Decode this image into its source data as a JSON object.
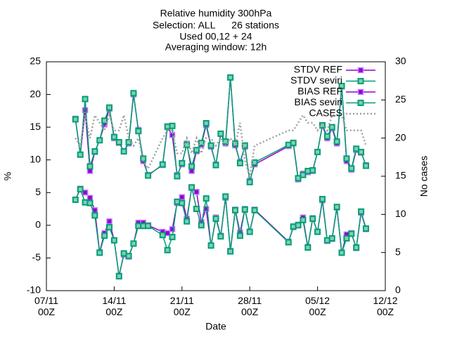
{
  "chart_data": {
    "type": "line",
    "title": [
      "Relative humidity 300hPa",
      "Selection: ALL      26 stations",
      "Used 00,12 + 24",
      "Averaging window: 12h"
    ],
    "x_label": "Date",
    "y_label": "%",
    "y2_label": "No cases",
    "x": [
      "10/11 00Z",
      "10/11 12Z",
      "11/11 00Z",
      "11/11 12Z",
      "12/11 00Z",
      "12/11 12Z",
      "13/11 00Z",
      "13/11 12Z",
      "14/11 00Z",
      "14/11 12Z",
      "15/11 00Z",
      "15/11 12Z",
      "16/11 00Z",
      "16/11 12Z",
      "17/11 00Z",
      "17/11 12Z",
      "19/11 00Z",
      "19/11 12Z",
      "20/11 00Z",
      "20/11 12Z",
      "21/11 00Z",
      "21/11 12Z",
      "22/11 00Z",
      "22/11 12Z",
      "23/11 00Z",
      "23/11 12Z",
      "24/11 00Z",
      "24/11 12Z",
      "25/11 00Z",
      "25/11 12Z",
      "26/11 00Z",
      "26/11 12Z",
      "27/11 00Z",
      "27/11 12Z",
      "28/11 00Z",
      "28/11 12Z",
      "02/12 00Z",
      "02/12 12Z",
      "03/12 00Z",
      "03/12 12Z",
      "04/12 00Z",
      "04/12 12Z",
      "05/12 00Z",
      "05/12 12Z",
      "06/12 00Z",
      "06/12 12Z",
      "07/12 00Z",
      "07/12 12Z",
      "08/12 00Z",
      "08/12 12Z",
      "09/12 00Z",
      "09/12 12Z",
      "10/12 00Z"
    ],
    "xlim": [
      "07/11 00Z",
      "12/12 00Z"
    ],
    "xticks": [
      {
        "value": "07/11 00Z",
        "label": "07/11\n00Z"
      },
      {
        "value": "14/11 00Z",
        "label": "14/11\n00Z"
      },
      {
        "value": "21/11 00Z",
        "label": "21/11\n00Z"
      },
      {
        "value": "28/11 00Z",
        "label": "28/11\n00Z"
      },
      {
        "value": "05/12 00Z",
        "label": "05/12\n00Z"
      },
      {
        "value": "12/12 00Z",
        "label": "12/12\n00Z"
      }
    ],
    "ylim": [
      -10,
      25
    ],
    "yticks": [
      -10,
      -5,
      0,
      5,
      10,
      15,
      20,
      25
    ],
    "y2lim": [
      0,
      30
    ],
    "y2ticks": [
      0,
      5,
      10,
      15,
      20,
      25,
      30
    ],
    "legend": "top right",
    "series": [
      {
        "name": "STDV REF",
        "color": "#9400d3",
        "marker": "filled-square",
        "line_style": "solid",
        "values": [
          16.3,
          10.8,
          17.6,
          8.3,
          11.2,
          13.0,
          15.4,
          17.8,
          13.3,
          12.6,
          11.3,
          12.5,
          20.0,
          14.6,
          9.8,
          7.7,
          9.2,
          15.0,
          13.8,
          7.7,
          9.3,
          12.5,
          8.3,
          11.3,
          12.3,
          15.3,
          12.0,
          9.3,
          14.0,
          12.5,
          22.6,
          12.2,
          9.7,
          12.0,
          6.8,
          9.3,
          12.1,
          12.5,
          7.0,
          7.9,
          8.1,
          8.3,
          11.2,
          15.2,
          13.3,
          14.8,
          12.5,
          21.2,
          9.8,
          8.5,
          11.5,
          11.1,
          9.2
        ]
      },
      {
        "name": "STDV seviri",
        "color": "#009e73",
        "marker": "open-square",
        "line_style": "solid",
        "values": [
          16.2,
          10.8,
          19.3,
          9.0,
          11.3,
          13.0,
          16.0,
          18.0,
          13.5,
          12.7,
          11.3,
          12.7,
          20.2,
          14.4,
          10.2,
          7.6,
          9.3,
          15.1,
          15.2,
          7.5,
          9.5,
          12.3,
          9.0,
          11.5,
          12.6,
          15.6,
          12.2,
          9.2,
          14.0,
          12.8,
          22.6,
          12.5,
          9.5,
          12.2,
          6.6,
          9.6,
          12.3,
          12.6,
          7.2,
          7.7,
          8.3,
          8.4,
          11.2,
          15.3,
          13.6,
          15.0,
          12.8,
          21.3,
          10.2,
          8.7,
          11.7,
          11.2,
          9.1
        ]
      },
      {
        "name": "BIAS REF",
        "color": "#9400d3",
        "marker": "filled-square",
        "line_style": "solid",
        "values": [
          3.9,
          5.6,
          5.0,
          4.2,
          2.3,
          -4.1,
          -1.2,
          0.6,
          -2.3,
          -7.7,
          -4.5,
          -4.8,
          -2.8,
          0.4,
          0.4,
          0.0,
          -1.0,
          -1.2,
          -0.6,
          3.4,
          4.3,
          1.0,
          5.7,
          5.1,
          0.5,
          2.5,
          -3.1,
          1.2,
          -1.6,
          4.2,
          -3.9,
          2.4,
          -1.1,
          2.5,
          -1.0,
          2.4,
          -2.5,
          -0.3,
          0.1,
          1.2,
          -3.3,
          1.1,
          -1.0,
          3.8,
          -2.4,
          -2.1,
          2.7,
          -4.2,
          -1.4,
          -1.2,
          -3.5,
          1.9,
          -0.6
        ]
      },
      {
        "name": "BIAS seviri",
        "color": "#009e73",
        "marker": "open-square",
        "line_style": "solid",
        "values": [
          3.9,
          5.5,
          3.5,
          3.4,
          1.5,
          -4.2,
          -1.6,
          -0.3,
          -2.3,
          -7.8,
          -4.3,
          -4.7,
          -2.8,
          -0.1,
          -0.1,
          -0.1,
          -1.5,
          -3.8,
          -1.8,
          3.6,
          3.4,
          0.6,
          5.8,
          2.5,
          0.0,
          4.1,
          -3.1,
          1.0,
          -1.7,
          4.4,
          -4.0,
          2.3,
          -1.6,
          2.4,
          -1.0,
          2.3,
          -2.6,
          -0.2,
          0.0,
          0.8,
          -3.4,
          1.0,
          -1.0,
          4.0,
          -2.3,
          -2.0,
          2.8,
          -4.2,
          -2.0,
          -1.3,
          -3.4,
          2.1,
          -0.5
        ]
      },
      {
        "name": "CASES",
        "color": "#a0a0a0",
        "marker": "none",
        "line_style": "dotted",
        "axis": "y2",
        "values": [
          20,
          19,
          23,
          20,
          23,
          22,
          21,
          23,
          21,
          21,
          23,
          20,
          19,
          20,
          17,
          16,
          20,
          21,
          21,
          18,
          18,
          20,
          18,
          20,
          18,
          20,
          20,
          19,
          20,
          19,
          20,
          19,
          22,
          17,
          15,
          19,
          21,
          21,
          22,
          23,
          22,
          22,
          21,
          22,
          21,
          23,
          23,
          23,
          21,
          21,
          21,
          21,
          19
        ]
      }
    ]
  }
}
